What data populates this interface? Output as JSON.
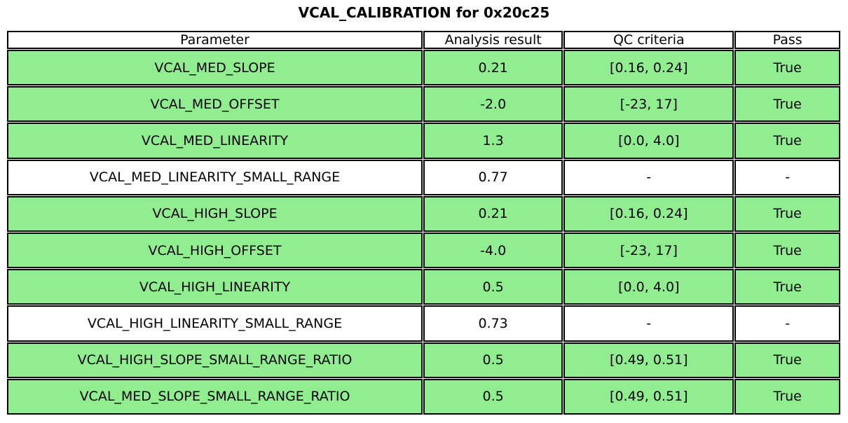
{
  "chart_data": {
    "type": "table",
    "title": "VCAL_CALIBRATION for 0x20c25",
    "columns": [
      "Parameter",
      "Analysis result",
      "QC criteria",
      "Pass"
    ],
    "rows": [
      {
        "cells": [
          "VCAL_MED_SLOPE",
          "0.21",
          "[0.16, 0.24]",
          "True"
        ],
        "pass_highlight": true
      },
      {
        "cells": [
          "VCAL_MED_OFFSET",
          "-2.0",
          "[-23, 17]",
          "True"
        ],
        "pass_highlight": true
      },
      {
        "cells": [
          "VCAL_MED_LINEARITY",
          "1.3",
          "[0.0, 4.0]",
          "True"
        ],
        "pass_highlight": true
      },
      {
        "cells": [
          "VCAL_MED_LINEARITY_SMALL_RANGE",
          "0.77",
          "-",
          "-"
        ],
        "pass_highlight": false
      },
      {
        "cells": [
          "VCAL_HIGH_SLOPE",
          "0.21",
          "[0.16, 0.24]",
          "True"
        ],
        "pass_highlight": true
      },
      {
        "cells": [
          "VCAL_HIGH_OFFSET",
          "-4.0",
          "[-23, 17]",
          "True"
        ],
        "pass_highlight": true
      },
      {
        "cells": [
          "VCAL_HIGH_LINEARITY",
          "0.5",
          "[0.0, 4.0]",
          "True"
        ],
        "pass_highlight": true
      },
      {
        "cells": [
          "VCAL_HIGH_LINEARITY_SMALL_RANGE",
          "0.73",
          "-",
          "-"
        ],
        "pass_highlight": false
      },
      {
        "cells": [
          "VCAL_HIGH_SLOPE_SMALL_RANGE_RATIO",
          "0.5",
          "[0.49, 0.51]",
          "True"
        ],
        "pass_highlight": true
      },
      {
        "cells": [
          "VCAL_MED_SLOPE_SMALL_RANGE_RATIO",
          "0.5",
          "[0.49, 0.51]",
          "True"
        ],
        "pass_highlight": true
      }
    ],
    "layout": {
      "legend": "none",
      "grid": "table-borders"
    }
  },
  "colors": {
    "pass_row_bg": "#90ee90",
    "neutral_row_bg": "#ffffff",
    "header_bg": "#ffffff",
    "border": "#000000",
    "text": "#000000"
  }
}
